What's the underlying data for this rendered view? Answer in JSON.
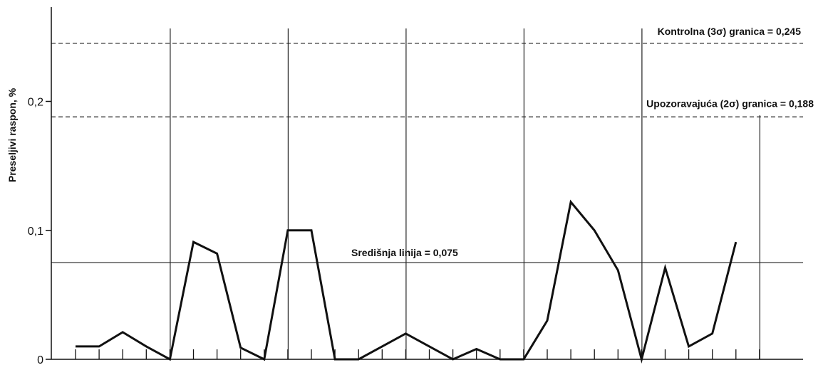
{
  "chart_data": {
    "type": "line",
    "ylabel": "Preseljivi raspon, %",
    "xlabel": "",
    "title": "",
    "ylim": [
      0,
      0.27
    ],
    "yticks": [
      0,
      0.1,
      0.2
    ],
    "ytick_labels": [
      "0",
      "0,1",
      "0,2"
    ],
    "grid": "vertical lines every 5 points",
    "legend": "none",
    "series": [
      {
        "x": [
          1,
          2,
          3,
          4,
          5,
          6,
          7,
          8,
          9,
          10,
          11,
          12,
          13,
          14,
          15,
          16,
          17,
          18,
          19,
          20,
          21,
          22,
          23,
          24,
          25,
          26,
          27,
          28,
          29,
          30
        ],
        "values": [
          0.01,
          0.01,
          0.021,
          0.01,
          0,
          0.091,
          0.082,
          0.009,
          0,
          0.1,
          0.1,
          0,
          0,
          0.01,
          0.02,
          0.01,
          0,
          0.008,
          0,
          0,
          0.03,
          0.122,
          0.1,
          0.069,
          0,
          0.071,
          0.01,
          0.02,
          0.091,
          null
        ]
      }
    ],
    "reference_lines": [
      {
        "label": "Kontrolna (3σ) granica = 0,245",
        "value": 0.245,
        "style": "dashed"
      },
      {
        "label": "Upozoravajuća (2σ) granica = 0,188",
        "value": 0.188,
        "style": "dashed"
      },
      {
        "label": "Središnja linija = 0,075",
        "value": 0.075,
        "style": "solid"
      }
    ],
    "colors": {
      "line": "#111111",
      "axis": "#111111",
      "grid": "#222222",
      "background": "#ffffff"
    }
  }
}
